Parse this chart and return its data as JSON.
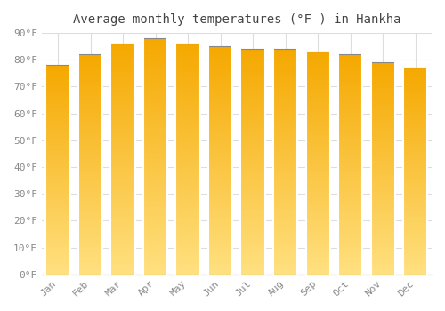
{
  "title": "Average monthly temperatures (°F ) in Hankha",
  "months": [
    "Jan",
    "Feb",
    "Mar",
    "Apr",
    "May",
    "Jun",
    "Jul",
    "Aug",
    "Sep",
    "Oct",
    "Nov",
    "Dec"
  ],
  "values": [
    78,
    82,
    86,
    88,
    86,
    85,
    84,
    84,
    83,
    82,
    79,
    77
  ],
  "bar_color_top": "#F5A800",
  "bar_color_bottom": "#FFE080",
  "ylim": [
    0,
    90
  ],
  "yticks": [
    0,
    10,
    20,
    30,
    40,
    50,
    60,
    70,
    80,
    90
  ],
  "ytick_labels": [
    "0°F",
    "10°F",
    "20°F",
    "30°F",
    "40°F",
    "50°F",
    "60°F",
    "70°F",
    "80°F",
    "90°F"
  ],
  "background_color": "#FFFFFF",
  "grid_color": "#DDDDDD",
  "title_fontsize": 10,
  "tick_fontsize": 8,
  "bar_edge_color": "#AAAAAA",
  "top_line_color": "#888888"
}
